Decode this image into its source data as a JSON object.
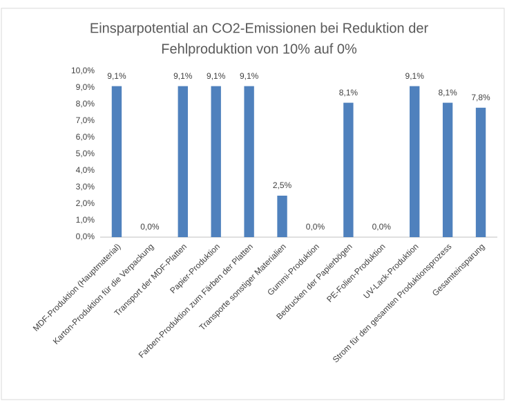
{
  "chart_data": {
    "type": "bar",
    "title": [
      "Einsparpotential an CO2-Emissionen bei Reduktion der",
      "Fehlproduktion von 10% auf 0%"
    ],
    "categories": [
      "MDF-Produktion (Hauptmaterial)",
      "Karton-Produktion für die Verpackung",
      "Transport der MDF-Platten",
      "Papier-Produktion",
      "Farben-Produktion zum Färben der Platten",
      "Transporte sonstiger Materialien",
      "Gummi-Produktion",
      "Bedrucken der Papierbögen",
      "PE-Folien-Produktion",
      "UV-Lack-Produktion",
      "Strom für den gesamten Produktionsprozess",
      "Gesamteinsparung"
    ],
    "values": [
      9.1,
      0,
      9.1,
      9.1,
      9.1,
      2.5,
      0,
      8.1,
      0,
      9.1,
      8.1,
      7.8
    ],
    "value_labels": [
      "9,1%",
      "0,0%",
      "9,1%",
      "9,1%",
      "9,1%",
      "2,5%",
      "0,0%",
      "8,1%",
      "0,0%",
      "9,1%",
      "8,1%",
      "7,8%"
    ],
    "color": "#4f81bd",
    "ylim": [
      0,
      10
    ],
    "yticks": [
      {
        "value": 0,
        "label": "0,0%"
      },
      {
        "value": 1,
        "label": "1,0%"
      },
      {
        "value": 2,
        "label": "2,0%"
      },
      {
        "value": 3,
        "label": "3,0%"
      },
      {
        "value": 4,
        "label": "4,0%"
      },
      {
        "value": 5,
        "label": "5,0%"
      },
      {
        "value": 6,
        "label": "6,0%"
      },
      {
        "value": 7,
        "label": "7,0%"
      },
      {
        "value": 8,
        "label": "8,0%"
      },
      {
        "value": 9,
        "label": "9,0%"
      },
      {
        "value": 10,
        "label": "10,0%"
      }
    ],
    "grid": false
  }
}
